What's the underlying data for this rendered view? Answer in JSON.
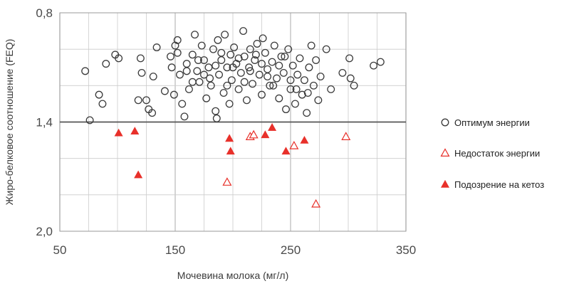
{
  "chart_data": {
    "type": "scatter",
    "title": "",
    "xlabel": "Мочевина молока (мг/л)",
    "ylabel": "Жиро-белковое соотношение (FEQ)",
    "xlim": [
      50,
      350
    ],
    "ylim_top_to_bottom": [
      0.8,
      2.0
    ],
    "y_axis_inverted": true,
    "x_ticks": [
      "50",
      "150",
      "250",
      "350"
    ],
    "y_ticks": [
      "0,8",
      "1,4",
      "2,0"
    ],
    "grid": true,
    "threshold_line_y": 1.4,
    "legend_position": "right",
    "colors": {
      "optimum": "#3a3a3a",
      "deficit": "#e8302a",
      "ketosis": "#e8302a",
      "grid": "#cccccc",
      "threshold": "#555555"
    },
    "series": [
      {
        "name": "Оптимум энергии",
        "marker": "open-circle",
        "points": [
          [
            72,
            1.12
          ],
          [
            76,
            1.39
          ],
          [
            84,
            1.25
          ],
          [
            87,
            1.3
          ],
          [
            90,
            1.08
          ],
          [
            98,
            1.03
          ],
          [
            101,
            1.05
          ],
          [
            118,
            1.28
          ],
          [
            120,
            1.05
          ],
          [
            121,
            1.13
          ],
          [
            125,
            1.28
          ],
          [
            127,
            1.33
          ],
          [
            130,
            1.35
          ],
          [
            131,
            1.15
          ],
          [
            134,
            0.99
          ],
          [
            141,
            1.23
          ],
          [
            146,
            1.04
          ],
          [
            147,
            1.1
          ],
          [
            149,
            1.25
          ],
          [
            150,
            0.98
          ],
          [
            152,
            0.95
          ],
          [
            152,
            1.02
          ],
          [
            154,
            1.14
          ],
          [
            156,
            1.3
          ],
          [
            158,
            1.37
          ],
          [
            160,
            1.08
          ],
          [
            162,
            1.22
          ],
          [
            165,
            1.03
          ],
          [
            167,
            0.92
          ],
          [
            169,
            1.12
          ],
          [
            171,
            1.18
          ],
          [
            173,
            0.98
          ],
          [
            175,
            1.06
          ],
          [
            177,
            1.27
          ],
          [
            179,
            1.1
          ],
          [
            181,
            1.2
          ],
          [
            183,
            1.0
          ],
          [
            185,
            1.34
          ],
          [
            186,
            1.38
          ],
          [
            187,
            0.95
          ],
          [
            188,
            1.14
          ],
          [
            190,
            1.06
          ],
          [
            192,
            1.24
          ],
          [
            193,
            0.92
          ],
          [
            195,
            1.1
          ],
          [
            197,
            1.3
          ],
          [
            198,
            1.03
          ],
          [
            199,
            1.17
          ],
          [
            201,
            0.99
          ],
          [
            203,
            1.08
          ],
          [
            205,
            1.22
          ],
          [
            207,
            1.13
          ],
          [
            209,
            0.9
          ],
          [
            210,
            1.04
          ],
          [
            212,
            1.28
          ],
          [
            214,
            1.1
          ],
          [
            215,
            1.0
          ],
          [
            217,
            1.19
          ],
          [
            219,
            1.06
          ],
          [
            221,
            0.97
          ],
          [
            223,
            1.14
          ],
          [
            225,
            1.25
          ],
          [
            226,
            0.94
          ],
          [
            228,
            1.02
          ],
          [
            230,
            1.11
          ],
          [
            232,
            1.2
          ],
          [
            234,
            1.07
          ],
          [
            236,
            0.98
          ],
          [
            238,
            1.16
          ],
          [
            240,
            1.27
          ],
          [
            242,
            1.04
          ],
          [
            244,
            1.13
          ],
          [
            246,
            1.33
          ],
          [
            248,
            1.0
          ],
          [
            250,
            1.22
          ],
          [
            252,
            1.09
          ],
          [
            254,
            1.3
          ],
          [
            256,
            1.14
          ],
          [
            258,
            1.05
          ],
          [
            260,
            1.25
          ],
          [
            262,
            1.17
          ],
          [
            264,
            1.35
          ],
          [
            266,
            1.1
          ],
          [
            268,
            0.98
          ],
          [
            270,
            1.2
          ],
          [
            272,
            1.06
          ],
          [
            274,
            1.28
          ],
          [
            276,
            1.15
          ],
          [
            281,
            1.0
          ],
          [
            285,
            1.22
          ],
          [
            295,
            1.13
          ],
          [
            301,
            1.05
          ],
          [
            302,
            1.16
          ],
          [
            305,
            1.2
          ],
          [
            322,
            1.09
          ],
          [
            328,
            1.07
          ],
          [
            160,
            1.12
          ],
          [
            170,
            1.06
          ],
          [
            180,
            1.16
          ],
          [
            190,
            1.02
          ],
          [
            200,
            1.1
          ],
          [
            210,
            1.18
          ],
          [
            220,
            1.03
          ],
          [
            230,
            1.15
          ],
          [
            240,
            1.09
          ],
          [
            250,
            1.17
          ],
          [
            185,
            1.09
          ],
          [
            195,
            1.2
          ],
          [
            205,
            1.05
          ],
          [
            215,
            1.12
          ],
          [
            225,
            1.08
          ],
          [
            235,
            1.2
          ],
          [
            245,
            1.04
          ],
          [
            255,
            1.22
          ],
          [
            265,
            1.24
          ],
          [
            175,
            1.14
          ],
          [
            165,
            1.18
          ]
        ]
      },
      {
        "name": "Недостаток энергии",
        "marker": "open-triangle",
        "points": [
          [
            195,
            1.73
          ],
          [
            215,
            1.48
          ],
          [
            218,
            1.47
          ],
          [
            253,
            1.53
          ],
          [
            272,
            1.85
          ],
          [
            298,
            1.48
          ]
        ]
      },
      {
        "name": "Подозрение на кетоз",
        "marker": "filled-triangle",
        "points": [
          [
            101,
            1.46
          ],
          [
            115,
            1.45
          ],
          [
            118,
            1.69
          ],
          [
            197,
            1.49
          ],
          [
            198,
            1.56
          ],
          [
            228,
            1.47
          ],
          [
            234,
            1.43
          ],
          [
            246,
            1.56
          ],
          [
            262,
            1.5
          ]
        ]
      }
    ]
  }
}
